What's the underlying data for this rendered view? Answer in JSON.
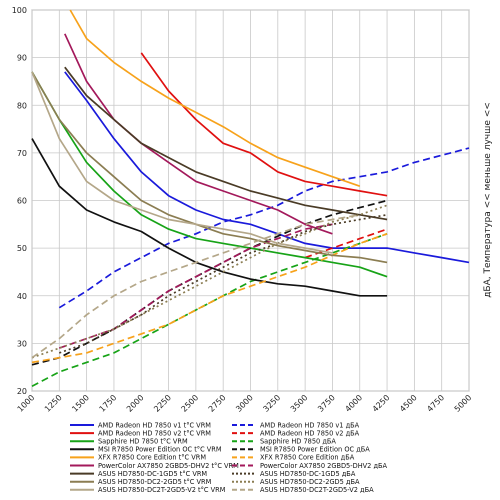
{
  "chart_data": {
    "type": "line",
    "title": "",
    "xlabel": "",
    "ylabel": "дБА, Температура << меньше лучше <<",
    "xlim": [
      1000,
      5000
    ],
    "ylim": [
      20,
      100
    ],
    "x_ticks": [
      1000,
      1250,
      1500,
      1750,
      2000,
      2250,
      2500,
      2750,
      3000,
      3250,
      3500,
      3750,
      4000,
      4250,
      4500,
      4750,
      5000
    ],
    "y_ticks": [
      20,
      30,
      40,
      50,
      60,
      70,
      80,
      90,
      100
    ],
    "grid": true,
    "legend_position": "bottom",
    "series": [
      {
        "name": "AMD Radeon HD 7850 v1 t°C VRM",
        "color": "#1a1adb",
        "dash": "solid",
        "points": [
          [
            1300,
            87
          ],
          [
            1500,
            81
          ],
          [
            1750,
            73
          ],
          [
            2000,
            66
          ],
          [
            2250,
            61
          ],
          [
            2500,
            58
          ],
          [
            2750,
            56
          ],
          [
            3000,
            55
          ],
          [
            3250,
            53
          ],
          [
            3500,
            51
          ],
          [
            3750,
            50
          ],
          [
            4000,
            50
          ],
          [
            4250,
            50
          ],
          [
            4500,
            49
          ],
          [
            4750,
            48
          ],
          [
            5000,
            47
          ]
        ]
      },
      {
        "name": "AMD Radeon HD 7850 v1 дБА",
        "color": "#1a1adb",
        "dash": "dashed",
        "points": [
          [
            1250,
            37.5
          ],
          [
            1500,
            41
          ],
          [
            1750,
            45
          ],
          [
            2000,
            48
          ],
          [
            2250,
            51
          ],
          [
            2500,
            53
          ],
          [
            2750,
            55.5
          ],
          [
            3000,
            57
          ],
          [
            3250,
            59
          ],
          [
            3500,
            62
          ],
          [
            3750,
            64
          ],
          [
            4000,
            65
          ],
          [
            4250,
            66
          ],
          [
            4500,
            68
          ],
          [
            4750,
            69.5
          ],
          [
            5000,
            71
          ]
        ]
      },
      {
        "name": "AMD Radeon HD 7850 v2 t°C VRM",
        "color": "#e01010",
        "dash": "solid",
        "points": [
          [
            2000,
            91
          ],
          [
            2250,
            83
          ],
          [
            2500,
            77
          ],
          [
            2750,
            72
          ],
          [
            3000,
            70
          ],
          [
            3250,
            66
          ],
          [
            3500,
            64
          ],
          [
            3750,
            63
          ],
          [
            4000,
            62
          ],
          [
            4250,
            61
          ]
        ]
      },
      {
        "name": "AMD Radeon HD 7850 v2 дБА",
        "color": "#e01010",
        "dash": "dashed",
        "points": [
          [
            3500,
            48
          ],
          [
            3750,
            50
          ],
          [
            4000,
            52
          ],
          [
            4250,
            54
          ]
        ]
      },
      {
        "name": "Sapphire HD 7850 t°C VRM",
        "color": "#17a317",
        "dash": "solid",
        "points": [
          [
            1000,
            87
          ],
          [
            1250,
            77
          ],
          [
            1500,
            68
          ],
          [
            1750,
            62
          ],
          [
            2000,
            57
          ],
          [
            2250,
            54
          ],
          [
            2500,
            52
          ],
          [
            2750,
            51
          ],
          [
            3000,
            50
          ],
          [
            3250,
            49
          ],
          [
            3500,
            48
          ],
          [
            3750,
            47
          ],
          [
            4000,
            46
          ],
          [
            4250,
            44
          ]
        ]
      },
      {
        "name": "Sapphire HD 7850 дБА",
        "color": "#17a317",
        "dash": "dashed",
        "points": [
          [
            1000,
            21
          ],
          [
            1250,
            24
          ],
          [
            1500,
            26
          ],
          [
            1750,
            28
          ],
          [
            2000,
            31
          ],
          [
            2250,
            34
          ],
          [
            2500,
            37
          ],
          [
            2750,
            40
          ],
          [
            3000,
            43
          ],
          [
            3250,
            45
          ],
          [
            3500,
            47
          ],
          [
            3750,
            49
          ],
          [
            4000,
            51
          ],
          [
            4250,
            53
          ]
        ]
      },
      {
        "name": "MSI R7850 Power Edition OC t°C VRM",
        "color": "#111111",
        "dash": "solid",
        "points": [
          [
            1000,
            73
          ],
          [
            1250,
            63
          ],
          [
            1500,
            58
          ],
          [
            1750,
            55.5
          ],
          [
            2000,
            53.5
          ],
          [
            2250,
            50
          ],
          [
            2500,
            47
          ],
          [
            2750,
            45
          ],
          [
            3000,
            43.5
          ],
          [
            3250,
            42.5
          ],
          [
            3500,
            42
          ],
          [
            3750,
            41
          ],
          [
            4000,
            40
          ],
          [
            4250,
            40
          ]
        ]
      },
      {
        "name": "MSI R7850 Power Edition OC дБА",
        "color": "#111111",
        "dash": "dashed",
        "points": [
          [
            1000,
            25.5
          ],
          [
            1250,
            27
          ],
          [
            1500,
            30
          ],
          [
            1750,
            33
          ],
          [
            2000,
            37
          ],
          [
            2250,
            41
          ],
          [
            2500,
            44
          ],
          [
            2750,
            47
          ],
          [
            3000,
            50
          ],
          [
            3250,
            52.5
          ],
          [
            3500,
            55
          ],
          [
            3750,
            57
          ],
          [
            4000,
            58.5
          ],
          [
            4250,
            60
          ]
        ]
      },
      {
        "name": "XFX R7850 Core Edition t°C VRM",
        "color": "#f7a21b",
        "dash": "solid",
        "points": [
          [
            1350,
            100
          ],
          [
            1500,
            94
          ],
          [
            1750,
            89
          ],
          [
            2000,
            85
          ],
          [
            2250,
            81.5
          ],
          [
            2500,
            78.5
          ],
          [
            2750,
            75.5
          ],
          [
            3000,
            72
          ],
          [
            3250,
            69
          ],
          [
            3500,
            67
          ],
          [
            3750,
            65
          ],
          [
            4000,
            63
          ]
        ]
      },
      {
        "name": "XFX R7850 Core Edition дБА",
        "color": "#f7a21b",
        "dash": "dashed",
        "points": [
          [
            1000,
            26
          ],
          [
            1250,
            27
          ],
          [
            1500,
            28
          ],
          [
            1750,
            30
          ],
          [
            2000,
            32
          ],
          [
            2250,
            34
          ],
          [
            2500,
            37
          ],
          [
            2750,
            40
          ],
          [
            3000,
            42
          ],
          [
            3250,
            44
          ],
          [
            3500,
            46
          ],
          [
            3750,
            48.5
          ],
          [
            4000,
            51
          ],
          [
            4250,
            53
          ]
        ]
      },
      {
        "name": "PowerColor AX7850 2GBD5-DHV2 t°C VRM",
        "color": "#a3195b",
        "dash": "solid",
        "points": [
          [
            1300,
            95
          ],
          [
            1500,
            85
          ],
          [
            1750,
            77
          ],
          [
            2000,
            72
          ],
          [
            2250,
            68
          ],
          [
            2500,
            64
          ],
          [
            2750,
            62
          ],
          [
            3000,
            60
          ],
          [
            3250,
            58
          ],
          [
            3500,
            55
          ],
          [
            3750,
            53
          ]
        ]
      },
      {
        "name": "PowerColor AX7850 2GBD5-DHV2 дБА",
        "color": "#a3195b",
        "dash": "dashed",
        "points": [
          [
            1250,
            29
          ],
          [
            1500,
            31
          ],
          [
            1750,
            33
          ],
          [
            2000,
            37
          ],
          [
            2250,
            41
          ],
          [
            2500,
            44
          ],
          [
            2750,
            47
          ],
          [
            3000,
            50
          ],
          [
            3250,
            52
          ],
          [
            3500,
            54
          ],
          [
            3750,
            55
          ]
        ]
      },
      {
        "name": "ASUS HD7850-DC-1GD5 t°C VRM",
        "color": "#4a3b26",
        "dash": "solid",
        "points": [
          [
            1300,
            88
          ],
          [
            1500,
            82
          ],
          [
            1750,
            77
          ],
          [
            2000,
            72
          ],
          [
            2250,
            69
          ],
          [
            2500,
            66
          ],
          [
            2750,
            64
          ],
          [
            3000,
            62
          ],
          [
            3250,
            60.5
          ],
          [
            3500,
            59
          ],
          [
            3750,
            58
          ],
          [
            4000,
            57
          ],
          [
            4250,
            56
          ]
        ]
      },
      {
        "name": "ASUS HD7850-DC-1GD5 дБА",
        "color": "#4a3b26",
        "dash": "dotted",
        "points": [
          [
            1250,
            28
          ],
          [
            1500,
            30
          ],
          [
            1750,
            33
          ],
          [
            2000,
            36
          ],
          [
            2250,
            40
          ],
          [
            2500,
            43
          ],
          [
            2750,
            46
          ],
          [
            3000,
            49
          ],
          [
            3250,
            51
          ],
          [
            3500,
            53.5
          ],
          [
            3750,
            55
          ],
          [
            4000,
            56
          ],
          [
            4250,
            57
          ]
        ]
      },
      {
        "name": "ASUS HD7850-DC2-2GD5 t°C VRM",
        "color": "#8b7d52",
        "dash": "solid",
        "points": [
          [
            1000,
            87
          ],
          [
            1250,
            77
          ],
          [
            1500,
            70
          ],
          [
            1750,
            65
          ],
          [
            2000,
            60
          ],
          [
            2250,
            57
          ],
          [
            2500,
            55
          ],
          [
            2750,
            53
          ],
          [
            3000,
            52
          ],
          [
            3250,
            50.5
          ],
          [
            3500,
            49.5
          ],
          [
            3750,
            48.5
          ],
          [
            4000,
            48
          ],
          [
            4250,
            47
          ]
        ]
      },
      {
        "name": "ASUS HD7850-DC2-2GD5 дБА",
        "color": "#8b7d52",
        "dash": "dotted",
        "points": [
          [
            1000,
            27
          ],
          [
            1250,
            29
          ],
          [
            1500,
            31
          ],
          [
            1750,
            33
          ],
          [
            2000,
            36
          ],
          [
            2250,
            39
          ],
          [
            2500,
            42
          ],
          [
            2750,
            45
          ],
          [
            3000,
            48
          ],
          [
            3250,
            51
          ],
          [
            3500,
            53
          ],
          [
            3750,
            55.5
          ],
          [
            4000,
            57
          ],
          [
            4250,
            59
          ]
        ]
      },
      {
        "name": "ASUS HD7850-DC2T-2GD5-V2 t°C VRM",
        "color": "#b4a789",
        "dash": "solid",
        "points": [
          [
            1000,
            87
          ],
          [
            1250,
            73
          ],
          [
            1500,
            64
          ],
          [
            1750,
            60
          ],
          [
            2000,
            58
          ],
          [
            2250,
            56
          ],
          [
            2500,
            55
          ],
          [
            2750,
            54
          ],
          [
            3000,
            53
          ],
          [
            3250,
            51
          ],
          [
            3500,
            50
          ],
          [
            3750,
            49
          ]
        ]
      },
      {
        "name": "ASUS HD7850-DC2T-2GD5-V2 дБА",
        "color": "#b4a789",
        "dash": "dashed",
        "points": [
          [
            1000,
            27
          ],
          [
            1250,
            31
          ],
          [
            1500,
            36
          ],
          [
            1750,
            40
          ],
          [
            2000,
            43
          ],
          [
            2250,
            45
          ],
          [
            2500,
            47
          ],
          [
            2750,
            49
          ],
          [
            3000,
            51
          ],
          [
            3250,
            53
          ],
          [
            3500,
            55
          ],
          [
            3750,
            56
          ],
          [
            4000,
            57
          ]
        ]
      }
    ]
  }
}
